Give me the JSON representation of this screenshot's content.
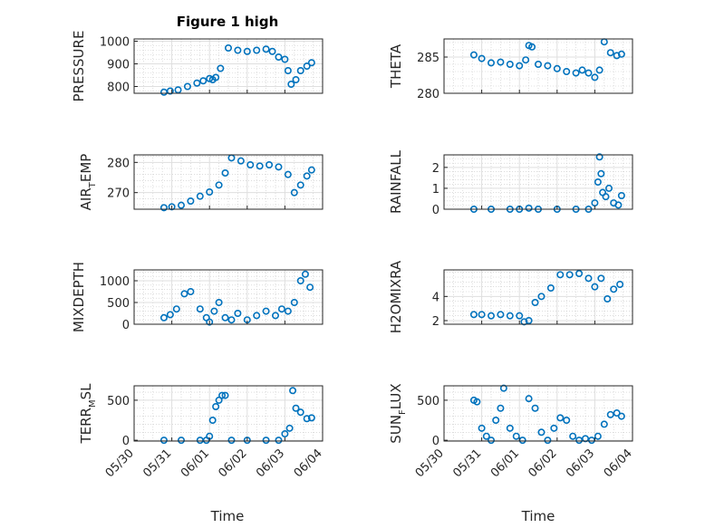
{
  "figure": {
    "title": "Figure 1 high",
    "marker_color": "#0072bd",
    "xlabel": "Time"
  },
  "chart_data": [
    {
      "type": "scatter",
      "title": "Figure 1 high",
      "ylabel": "PRESSURE",
      "ylabel_parts": [
        "PRESSURE"
      ],
      "xlim": [
        "2015-05-30",
        "2015-06-04"
      ],
      "ylim": [
        770,
        1010
      ],
      "yticks": [
        800,
        900,
        1000
      ],
      "xtick_labels": [],
      "grid": true,
      "series": [
        {
          "x": [
            "05-30 19:00",
            "05-30 23:00",
            "05-31 04:00",
            "05-31 10:00",
            "05-31 16:00",
            "05-31 20:00",
            "06-01 00:00",
            "06-01 02:00",
            "06-01 04:00",
            "06-01 07:00",
            "06-01 12:00",
            "06-01 18:00",
            "06-02 00:00",
            "06-02 06:00",
            "06-02 12:00",
            "06-02 16:00",
            "06-02 20:00",
            "06-03 00:00",
            "06-03 02:00",
            "06-03 04:00",
            "06-03 07:00",
            "06-03 10:00",
            "06-03 14:00",
            "06-03 17:00"
          ],
          "y": [
            775,
            780,
            785,
            800,
            815,
            825,
            835,
            830,
            840,
            880,
            970,
            960,
            955,
            960,
            965,
            955,
            930,
            920,
            870,
            810,
            830,
            870,
            890,
            905
          ]
        }
      ]
    },
    {
      "type": "scatter",
      "ylabel": "THETA",
      "ylabel_parts": [
        "THETA"
      ],
      "xlim": [
        "2015-05-30",
        "2015-06-04"
      ],
      "ylim": [
        280,
        287.5
      ],
      "yticks": [
        280,
        285
      ],
      "xtick_labels": [],
      "grid": true,
      "series": [
        {
          "x": [
            "05-30 19:00",
            "05-31 00:00",
            "05-31 06:00",
            "05-31 12:00",
            "05-31 18:00",
            "06-01 00:00",
            "06-01 04:00",
            "06-01 06:00",
            "06-01 08:00",
            "06-01 12:00",
            "06-01 18:00",
            "06-02 00:00",
            "06-02 06:00",
            "06-02 12:00",
            "06-02 16:00",
            "06-02 20:00",
            "06-03 00:00",
            "06-03 03:00",
            "06-03 06:00",
            "06-03 10:00",
            "06-03 14:00",
            "06-03 17:00"
          ],
          "y": [
            285.3,
            284.8,
            284.2,
            284.3,
            284.0,
            283.8,
            284.6,
            286.6,
            286.4,
            284.0,
            283.8,
            283.4,
            283.0,
            282.8,
            283.2,
            282.8,
            282.2,
            283.2,
            287.1,
            285.6,
            285.2,
            285.4
          ]
        }
      ]
    },
    {
      "type": "scatter",
      "ylabel": "AIR_TEMP",
      "ylabel_parts": [
        "AIR",
        "T",
        "EMP"
      ],
      "xlim": [
        "2015-05-30",
        "2015-06-04"
      ],
      "ylim": [
        264.5,
        282.5
      ],
      "yticks": [
        270,
        280
      ],
      "xtick_labels": [],
      "grid": true,
      "series": [
        {
          "x": [
            "05-30 19:00",
            "05-31 00:00",
            "05-31 06:00",
            "05-31 12:00",
            "05-31 18:00",
            "06-01 00:00",
            "06-01 06:00",
            "06-01 10:00",
            "06-01 14:00",
            "06-01 20:00",
            "06-02 02:00",
            "06-02 08:00",
            "06-02 14:00",
            "06-02 20:00",
            "06-03 02:00",
            "06-03 06:00",
            "06-03 10:00",
            "06-03 14:00",
            "06-03 17:00"
          ],
          "y": [
            265,
            265.3,
            265.8,
            267.2,
            268.8,
            270.2,
            272.5,
            276.5,
            281.5,
            280.5,
            279.2,
            278.8,
            279.2,
            278.5,
            276.0,
            270.0,
            272.5,
            275.5,
            277.5
          ]
        }
      ]
    },
    {
      "type": "scatter",
      "ylabel": "RAINFALL",
      "ylabel_parts": [
        "RAINFALL"
      ],
      "xlim": [
        "2015-05-30",
        "2015-06-04"
      ],
      "ylim": [
        0,
        2.6
      ],
      "yticks": [
        0,
        1,
        2
      ],
      "xtick_labels": [],
      "grid": true,
      "series": [
        {
          "x": [
            "05-30 19:00",
            "05-31 06:00",
            "05-31 18:00",
            "06-01 00:00",
            "06-01 06:00",
            "06-01 12:00",
            "06-02 00:00",
            "06-02 12:00",
            "06-02 20:00",
            "06-03 00:00",
            "06-03 02:00",
            "06-03 03:00",
            "06-03 04:00",
            "06-03 05:00",
            "06-03 07:00",
            "06-03 09:00",
            "06-03 12:00",
            "06-03 15:00",
            "06-03 17:00"
          ],
          "y": [
            0,
            0,
            0,
            0,
            0.05,
            0,
            0,
            0,
            0,
            0.3,
            1.3,
            2.5,
            1.7,
            0.8,
            0.6,
            1.0,
            0.3,
            0.2,
            0.65
          ]
        }
      ]
    },
    {
      "type": "scatter",
      "ylabel": "MIXDEPTH",
      "ylabel_parts": [
        "MIXDEPTH"
      ],
      "xlim": [
        "2015-05-30",
        "2015-06-04"
      ],
      "ylim": [
        0,
        1250
      ],
      "yticks": [
        0,
        500,
        1000
      ],
      "xtick_labels": [],
      "grid": true,
      "series": [
        {
          "x": [
            "05-30 19:00",
            "05-30 23:00",
            "05-31 03:00",
            "05-31 08:00",
            "05-31 12:00",
            "05-31 18:00",
            "05-31 22:00",
            "06-01 00:00",
            "06-01 03:00",
            "06-01 06:00",
            "06-01 10:00",
            "06-01 14:00",
            "06-01 18:00",
            "06-02 00:00",
            "06-02 06:00",
            "06-02 12:00",
            "06-02 18:00",
            "06-02 22:00",
            "06-03 02:00",
            "06-03 06:00",
            "06-03 10:00",
            "06-03 13:00",
            "06-03 16:00"
          ],
          "y": [
            150,
            220,
            350,
            700,
            750,
            350,
            150,
            50,
            300,
            500,
            150,
            100,
            250,
            100,
            200,
            300,
            200,
            350,
            300,
            500,
            1000,
            1150,
            850
          ]
        }
      ]
    },
    {
      "type": "scatter",
      "ylabel": "H2OMIXRA",
      "ylabel_parts": [
        "H2OMIXRA"
      ],
      "xlim": [
        "2015-05-30",
        "2015-06-04"
      ],
      "ylim": [
        1.7,
        6.2
      ],
      "yticks": [
        2,
        4
      ],
      "xtick_labels": [],
      "grid": true,
      "series": [
        {
          "x": [
            "05-30 19:00",
            "05-31 00:00",
            "05-31 06:00",
            "05-31 12:00",
            "05-31 18:00",
            "06-01 00:00",
            "06-01 03:00",
            "06-01 06:00",
            "06-01 10:00",
            "06-01 14:00",
            "06-01 20:00",
            "06-02 02:00",
            "06-02 08:00",
            "06-02 14:00",
            "06-02 20:00",
            "06-03 00:00",
            "06-03 04:00",
            "06-03 08:00",
            "06-03 12:00",
            "06-03 16:00"
          ],
          "y": [
            2.5,
            2.5,
            2.4,
            2.5,
            2.4,
            2.4,
            1.9,
            2.0,
            3.5,
            4.0,
            4.7,
            5.8,
            5.8,
            5.9,
            5.5,
            4.8,
            5.5,
            3.8,
            4.6,
            5.0
          ]
        }
      ]
    },
    {
      "type": "scatter",
      "ylabel": "TERR_MSL",
      "ylabel_parts": [
        "TERR",
        "M",
        "SL"
      ],
      "xlim": [
        "2015-05-30",
        "2015-06-04"
      ],
      "ylim": [
        -10,
        680
      ],
      "yticks": [
        0,
        500
      ],
      "xtick_labels": [
        "05/30",
        "05/31",
        "06/01",
        "06/02",
        "06/03",
        "06/04"
      ],
      "grid": true,
      "series": [
        {
          "x": [
            "05-30 19:00",
            "05-31 06:00",
            "05-31 18:00",
            "05-31 22:00",
            "06-01 00:00",
            "06-01 02:00",
            "06-01 04:00",
            "06-01 06:00",
            "06-01 08:00",
            "06-01 10:00",
            "06-01 14:00",
            "06-02 00:00",
            "06-02 12:00",
            "06-02 20:00",
            "06-03 00:00",
            "06-03 03:00",
            "06-03 05:00",
            "06-03 07:00",
            "06-03 10:00",
            "06-03 14:00",
            "06-03 17:00"
          ],
          "y": [
            0,
            0,
            0,
            0,
            50,
            250,
            420,
            500,
            560,
            560,
            0,
            0,
            0,
            0,
            80,
            150,
            620,
            400,
            350,
            270,
            280
          ]
        }
      ]
    },
    {
      "type": "scatter",
      "ylabel": "SUN_FLUX",
      "ylabel_parts": [
        "SUN",
        "F",
        "LUX"
      ],
      "xlim": [
        "2015-05-30",
        "2015-06-04"
      ],
      "ylim": [
        -10,
        680
      ],
      "yticks": [
        0,
        500
      ],
      "xtick_labels": [
        "05/30",
        "05/31",
        "06/01",
        "06/02",
        "06/03",
        "06/04"
      ],
      "grid": true,
      "series": [
        {
          "x": [
            "05-30 19:00",
            "05-30 21:00",
            "05-31 00:00",
            "05-31 03:00",
            "05-31 06:00",
            "05-31 09:00",
            "05-31 12:00",
            "05-31 14:00",
            "05-31 18:00",
            "05-31 22:00",
            "06-01 02:00",
            "06-01 06:00",
            "06-01 10:00",
            "06-01 14:00",
            "06-01 18:00",
            "06-01 22:00",
            "06-02 02:00",
            "06-02 06:00",
            "06-02 10:00",
            "06-02 14:00",
            "06-02 18:00",
            "06-02 22:00",
            "06-03 02:00",
            "06-03 06:00",
            "06-03 10:00",
            "06-03 14:00",
            "06-03 17:00"
          ],
          "y": [
            500,
            480,
            150,
            50,
            0,
            250,
            400,
            650,
            150,
            50,
            0,
            520,
            400,
            100,
            0,
            150,
            280,
            250,
            50,
            0,
            20,
            0,
            50,
            200,
            320,
            340,
            300
          ]
        }
      ]
    }
  ]
}
